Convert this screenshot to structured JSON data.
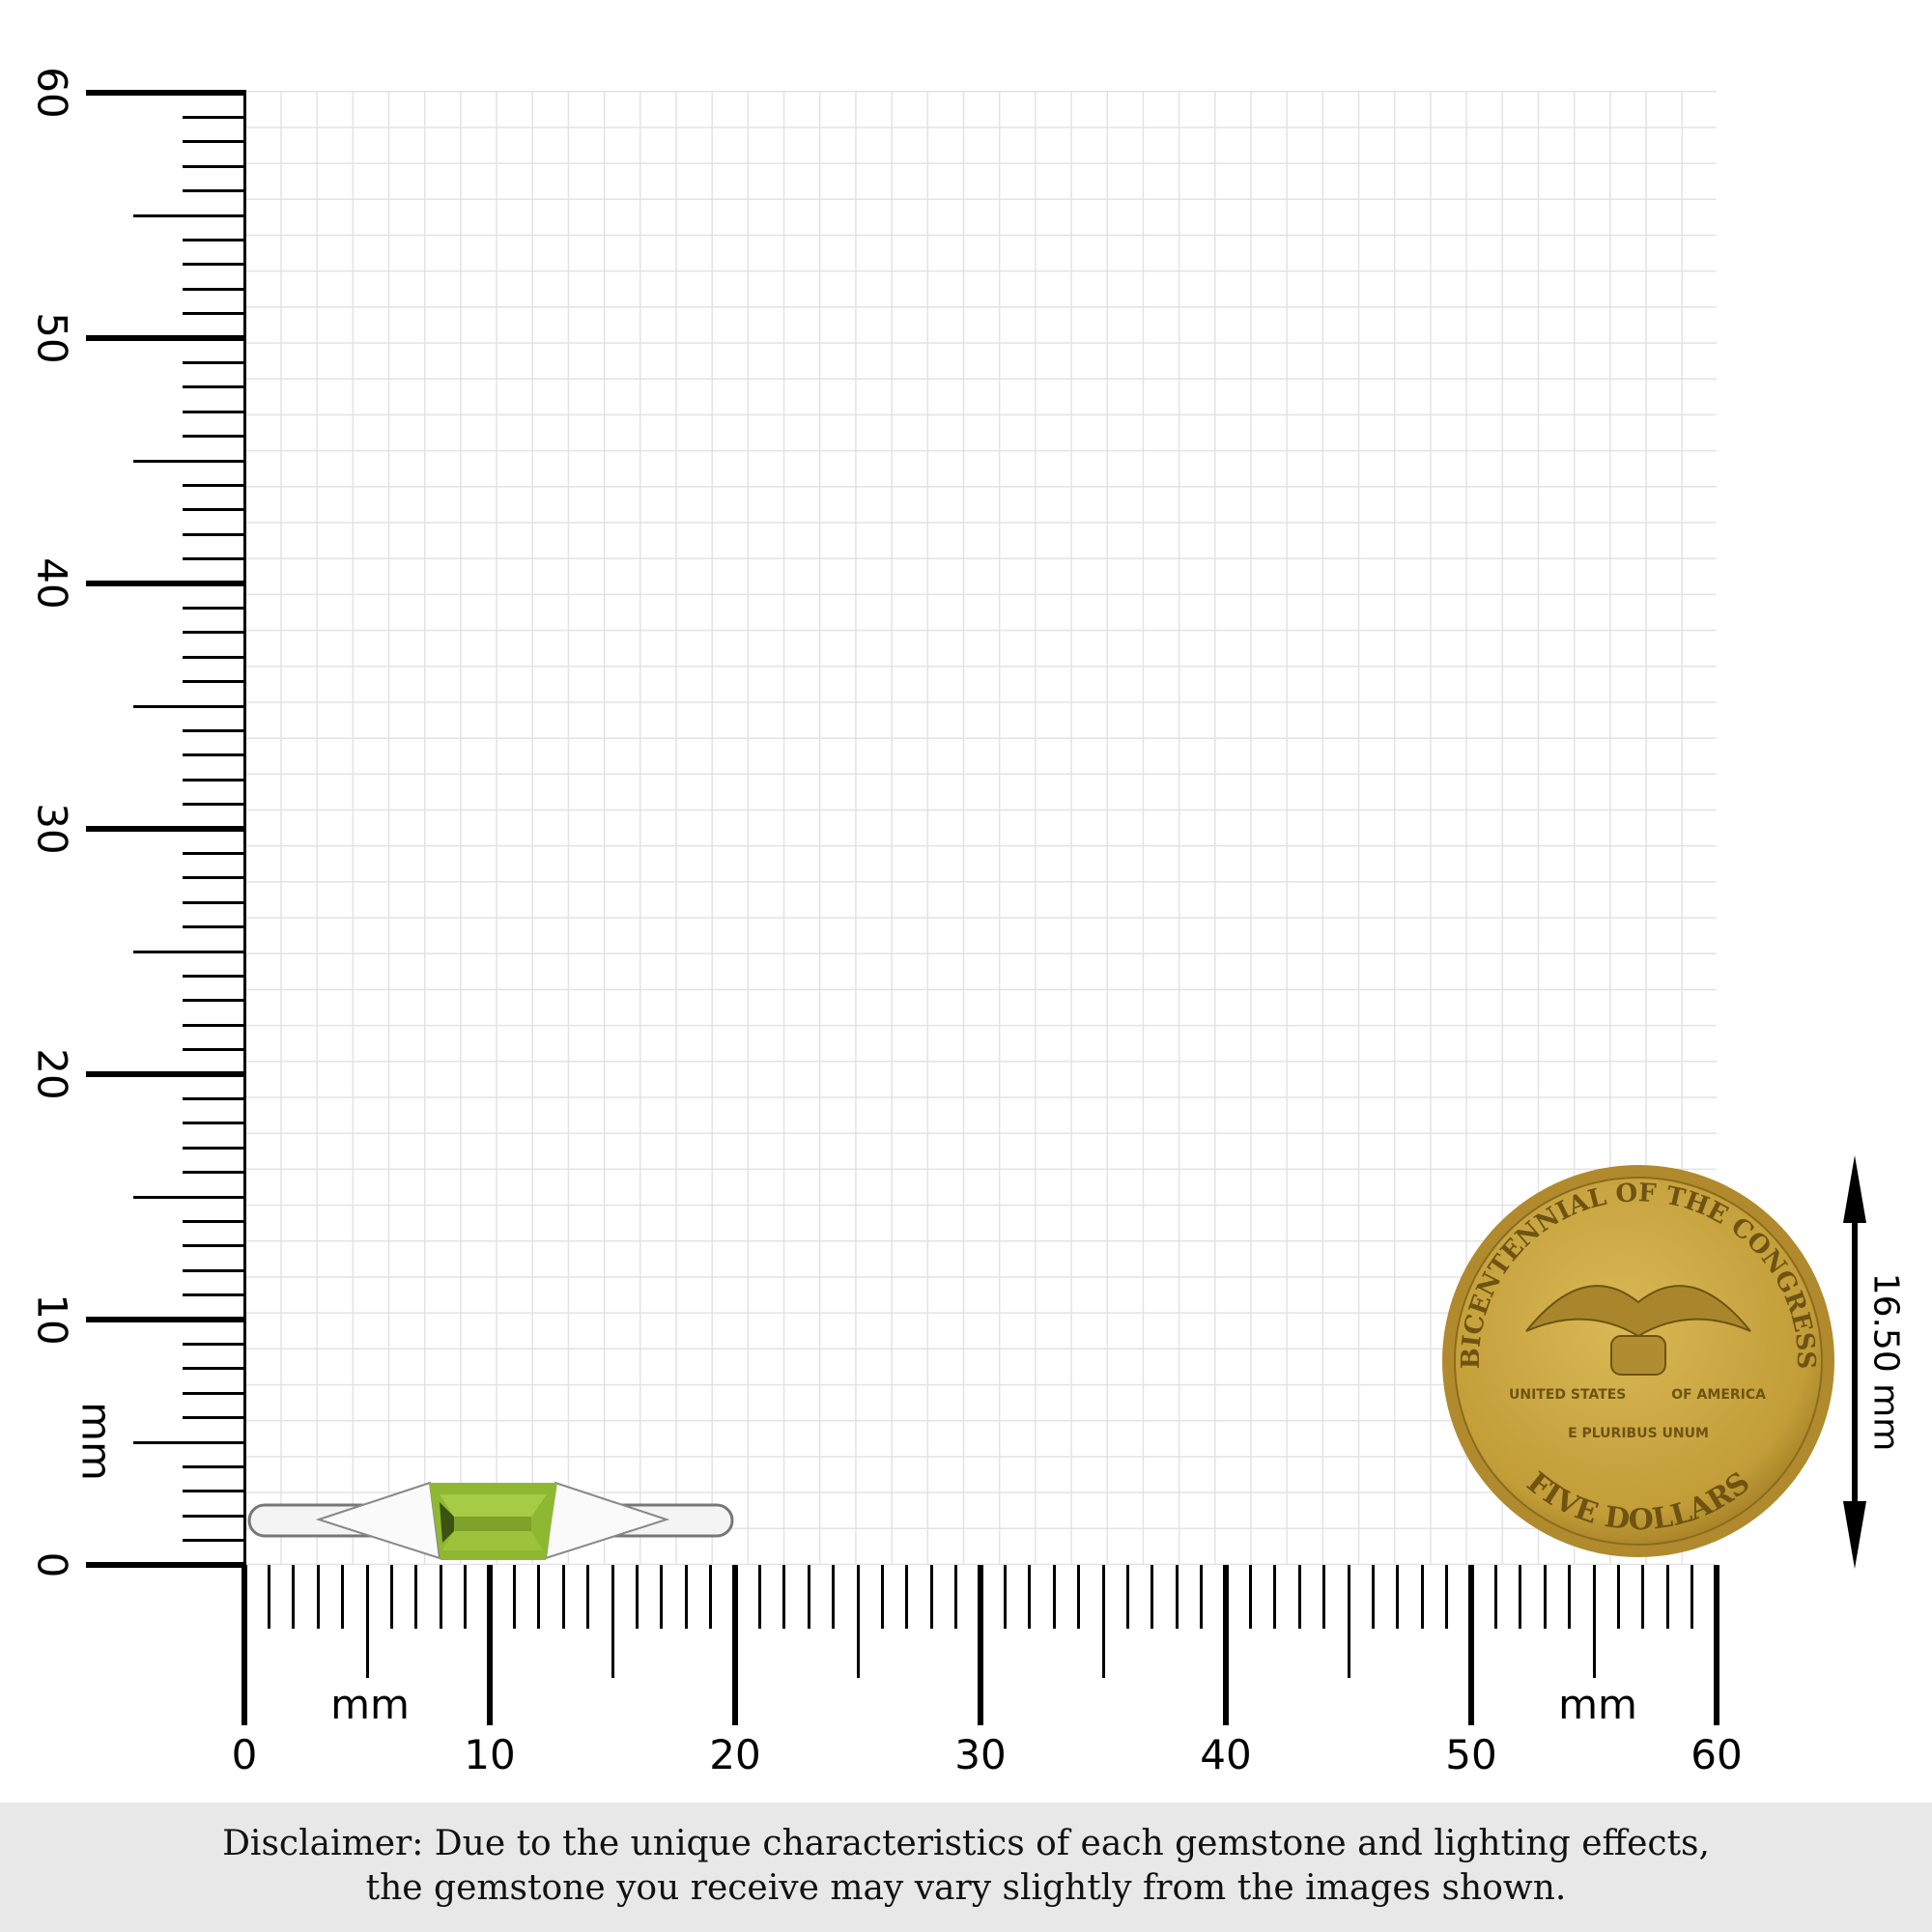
{
  "vertical_ruler": {
    "unit": "mm",
    "labels": [
      "0",
      "10",
      "20",
      "30",
      "40",
      "50",
      "60"
    ]
  },
  "horizontal_ruler": {
    "unit": "mm",
    "labels": [
      "0",
      "10",
      "20",
      "30",
      "40",
      "50",
      "60"
    ]
  },
  "coin": {
    "top_text": "BICENTENNIAL OF THE CONGRESS",
    "left_text": "UNITED STATES",
    "right_text": "OF AMERICA",
    "motto": "E PLURIBUS UNUM",
    "bottom_text": "FIVE DOLLARS",
    "color": "#c9a640"
  },
  "coin_dimension": {
    "label": "16.50 mm",
    "value_mm": 16.5
  },
  "ring": {
    "gem_color": "#8fb832",
    "metal_color": "#f2f2f2"
  },
  "disclaimer": {
    "line1": "Disclaimer: Due to the unique characteristics of each gemstone and lighting effects,",
    "line2": "the gemstone you receive may vary slightly from the images shown."
  }
}
